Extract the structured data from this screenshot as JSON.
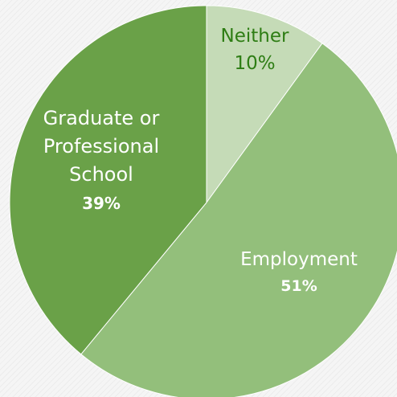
{
  "chart_data": {
    "type": "pie",
    "start_angle_deg": 0,
    "direction": "clockwise",
    "slices": [
      {
        "label_lines": [
          "Neither"
        ],
        "value": 10,
        "value_label": "10%",
        "color": "#c5dbb7",
        "label_color": "#2e7d14",
        "value_bold": false
      },
      {
        "label_lines": [
          "Employment"
        ],
        "value": 51,
        "value_label": "51%",
        "color": "#93bf7b",
        "label_color": "#ffffff",
        "value_bold": true
      },
      {
        "label_lines": [
          "Graduate or",
          "Professional",
          "School"
        ],
        "value": 39,
        "value_label": "39%",
        "color": "#6aa148",
        "label_color": "#ffffff",
        "value_bold": true
      }
    ]
  }
}
